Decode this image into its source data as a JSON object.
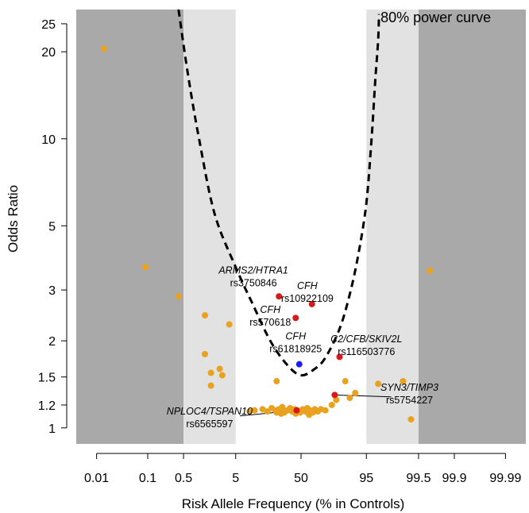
{
  "chart_data": {
    "type": "scatter",
    "title": "",
    "xlabel": "Risk Allele Frequency (% in Controls)",
    "ylabel": "Odds Ratio",
    "x_scale": "logit",
    "y_scale": "log",
    "xlim": [
      0.004,
      99.996
    ],
    "ylim": [
      0.88,
      28
    ],
    "x_ticks": [
      {
        "value": 0.01,
        "label": "0.01"
      },
      {
        "value": 0.1,
        "label": "0.1"
      },
      {
        "value": 0.5,
        "label": "0.5"
      },
      {
        "value": 5,
        "label": "5"
      },
      {
        "value": 50,
        "label": "50"
      },
      {
        "value": 95,
        "label": "95"
      },
      {
        "value": 99.5,
        "label": "99.5"
      },
      {
        "value": 99.9,
        "label": "99.9"
      },
      {
        "value": 99.99,
        "label": "99.99"
      }
    ],
    "y_ticks": [
      {
        "value": 1,
        "label": "1"
      },
      {
        "value": 1.2,
        "label": "1.2"
      },
      {
        "value": 1.5,
        "label": "1.5"
      },
      {
        "value": 2,
        "label": "2"
      },
      {
        "value": 3,
        "label": "3"
      },
      {
        "value": 5,
        "label": "5"
      },
      {
        "value": 10,
        "label": "10"
      },
      {
        "value": 20,
        "label": "20"
      },
      {
        "value": 25,
        "label": "25"
      }
    ],
    "bands": [
      {
        "from": 0.004,
        "to": 0.5,
        "color": "#a9a9a9"
      },
      {
        "from": 0.5,
        "to": 5,
        "color": "#e2e2e2"
      },
      {
        "from": 95,
        "to": 99.5,
        "color": "#e2e2e2"
      },
      {
        "from": 99.5,
        "to": 99.996,
        "color": "#a9a9a9"
      }
    ],
    "power_curve": {
      "label": "80% power curve",
      "color": "#000000",
      "points": [
        [
          0.4,
          28
        ],
        [
          0.6,
          17
        ],
        [
          1,
          10
        ],
        [
          2,
          5.5
        ],
        [
          5,
          3.6
        ],
        [
          10,
          2.7
        ],
        [
          20,
          2.0
        ],
        [
          35,
          1.65
        ],
        [
          50,
          1.52
        ],
        [
          65,
          1.6
        ],
        [
          75,
          1.75
        ],
        [
          85,
          2.2
        ],
        [
          90,
          2.9
        ],
        [
          93,
          4.0
        ],
        [
          95,
          6.0
        ],
        [
          96,
          10
        ],
        [
          96.6,
          16
        ],
        [
          97,
          22
        ],
        [
          97.1,
          27
        ]
      ]
    },
    "series": [
      {
        "color": "#e8a21f",
        "points": [
          [
            0.014,
            20.5
          ],
          [
            0.09,
            3.6
          ],
          [
            0.4,
            2.85
          ],
          [
            1.3,
            2.45
          ],
          [
            3.8,
            2.28
          ],
          [
            1.3,
            1.8
          ],
          [
            1.7,
            1.55
          ],
          [
            2.5,
            1.6
          ],
          [
            2.8,
            1.52
          ],
          [
            1.7,
            1.4
          ],
          [
            25,
            1.45
          ],
          [
            88,
            1.45
          ],
          [
            92,
            1.32
          ],
          [
            90,
            1.27
          ],
          [
            97,
            1.42
          ],
          [
            99,
            1.45
          ],
          [
            99.3,
            1.07
          ],
          [
            99.7,
            3.5
          ],
          [
            80,
            1.2
          ],
          [
            75,
            1.15
          ],
          [
            83,
            1.25
          ],
          [
            9,
            1.14
          ],
          [
            11,
            1.15
          ],
          [
            15,
            1.16
          ],
          [
            18,
            1.14
          ],
          [
            21,
            1.17
          ],
          [
            24,
            1.15
          ],
          [
            27,
            1.16
          ],
          [
            30,
            1.18
          ],
          [
            32,
            1.13
          ],
          [
            35,
            1.15
          ],
          [
            38,
            1.17
          ],
          [
            40,
            1.14
          ],
          [
            43,
            1.16
          ],
          [
            46,
            1.15
          ],
          [
            49,
            1.13
          ],
          [
            52,
            1.16
          ],
          [
            55,
            1.14
          ],
          [
            57,
            1.17
          ],
          [
            60,
            1.15
          ],
          [
            63,
            1.13
          ],
          [
            65,
            1.16
          ],
          [
            68,
            1.14
          ],
          [
            71,
            1.16
          ],
          [
            29,
            1.12
          ],
          [
            44,
            1.12
          ],
          [
            59,
            1.11
          ],
          [
            25,
            1.13
          ]
        ]
      },
      {
        "color": "#d7191c",
        "points": [
          [
            27,
            2.85
          ],
          [
            62,
            2.68
          ],
          [
            44,
            2.4
          ],
          [
            85,
            1.76
          ],
          [
            82,
            1.3
          ],
          [
            45,
            1.15
          ]
        ]
      },
      {
        "color": "#1a1aff",
        "points": [
          [
            48,
            1.66
          ]
        ]
      }
    ],
    "annotations": [
      {
        "gene": "ARMS2/HTRA1",
        "snp": "rs3750846",
        "gene_color": "#000000",
        "snp_color": "#000000",
        "at": [
          10.5,
          3.42
        ],
        "leader": false
      },
      {
        "gene": "CFH",
        "snp": "rs10922109",
        "gene_color": "#000000",
        "snp_color": "#000000",
        "at": [
          57,
          3.02
        ],
        "leader": false
      },
      {
        "gene": "CFH",
        "snp": "rs570618",
        "gene_color": "#000000",
        "snp_color": "#000000",
        "at": [
          20,
          2.5
        ],
        "leader": false
      },
      {
        "gene": "CFH",
        "snp": "rs61818925",
        "gene_color": "#1a1aff",
        "snp_color": "#1a1aff",
        "at": [
          44,
          2.02
        ],
        "leader": false
      },
      {
        "gene": "C2/CFB/SKIV2L",
        "snp": "rs116503776",
        "gene_color": "#000000",
        "snp_color": "#000000",
        "at": [
          95,
          1.98
        ],
        "leader": false
      },
      {
        "gene": "SYN3/TIMP3",
        "snp": "rs5754227",
        "gene_color": "#000000",
        "snp_color": "#000000",
        "at": [
          99.25,
          1.345
        ],
        "leader": true,
        "leader_from": [
          82,
          1.3
        ],
        "leader_to": [
          98.3,
          1.28
        ]
      },
      {
        "gene": "NPLOC4/TSPAN10",
        "snp": "rs6565597",
        "gene_color": "#000000",
        "snp_color": "#000000",
        "at": [
          1.6,
          1.112
        ],
        "leader": true,
        "leader_from": [
          45,
          1.15
        ],
        "leader_to": [
          6,
          1.1
        ]
      }
    ]
  }
}
